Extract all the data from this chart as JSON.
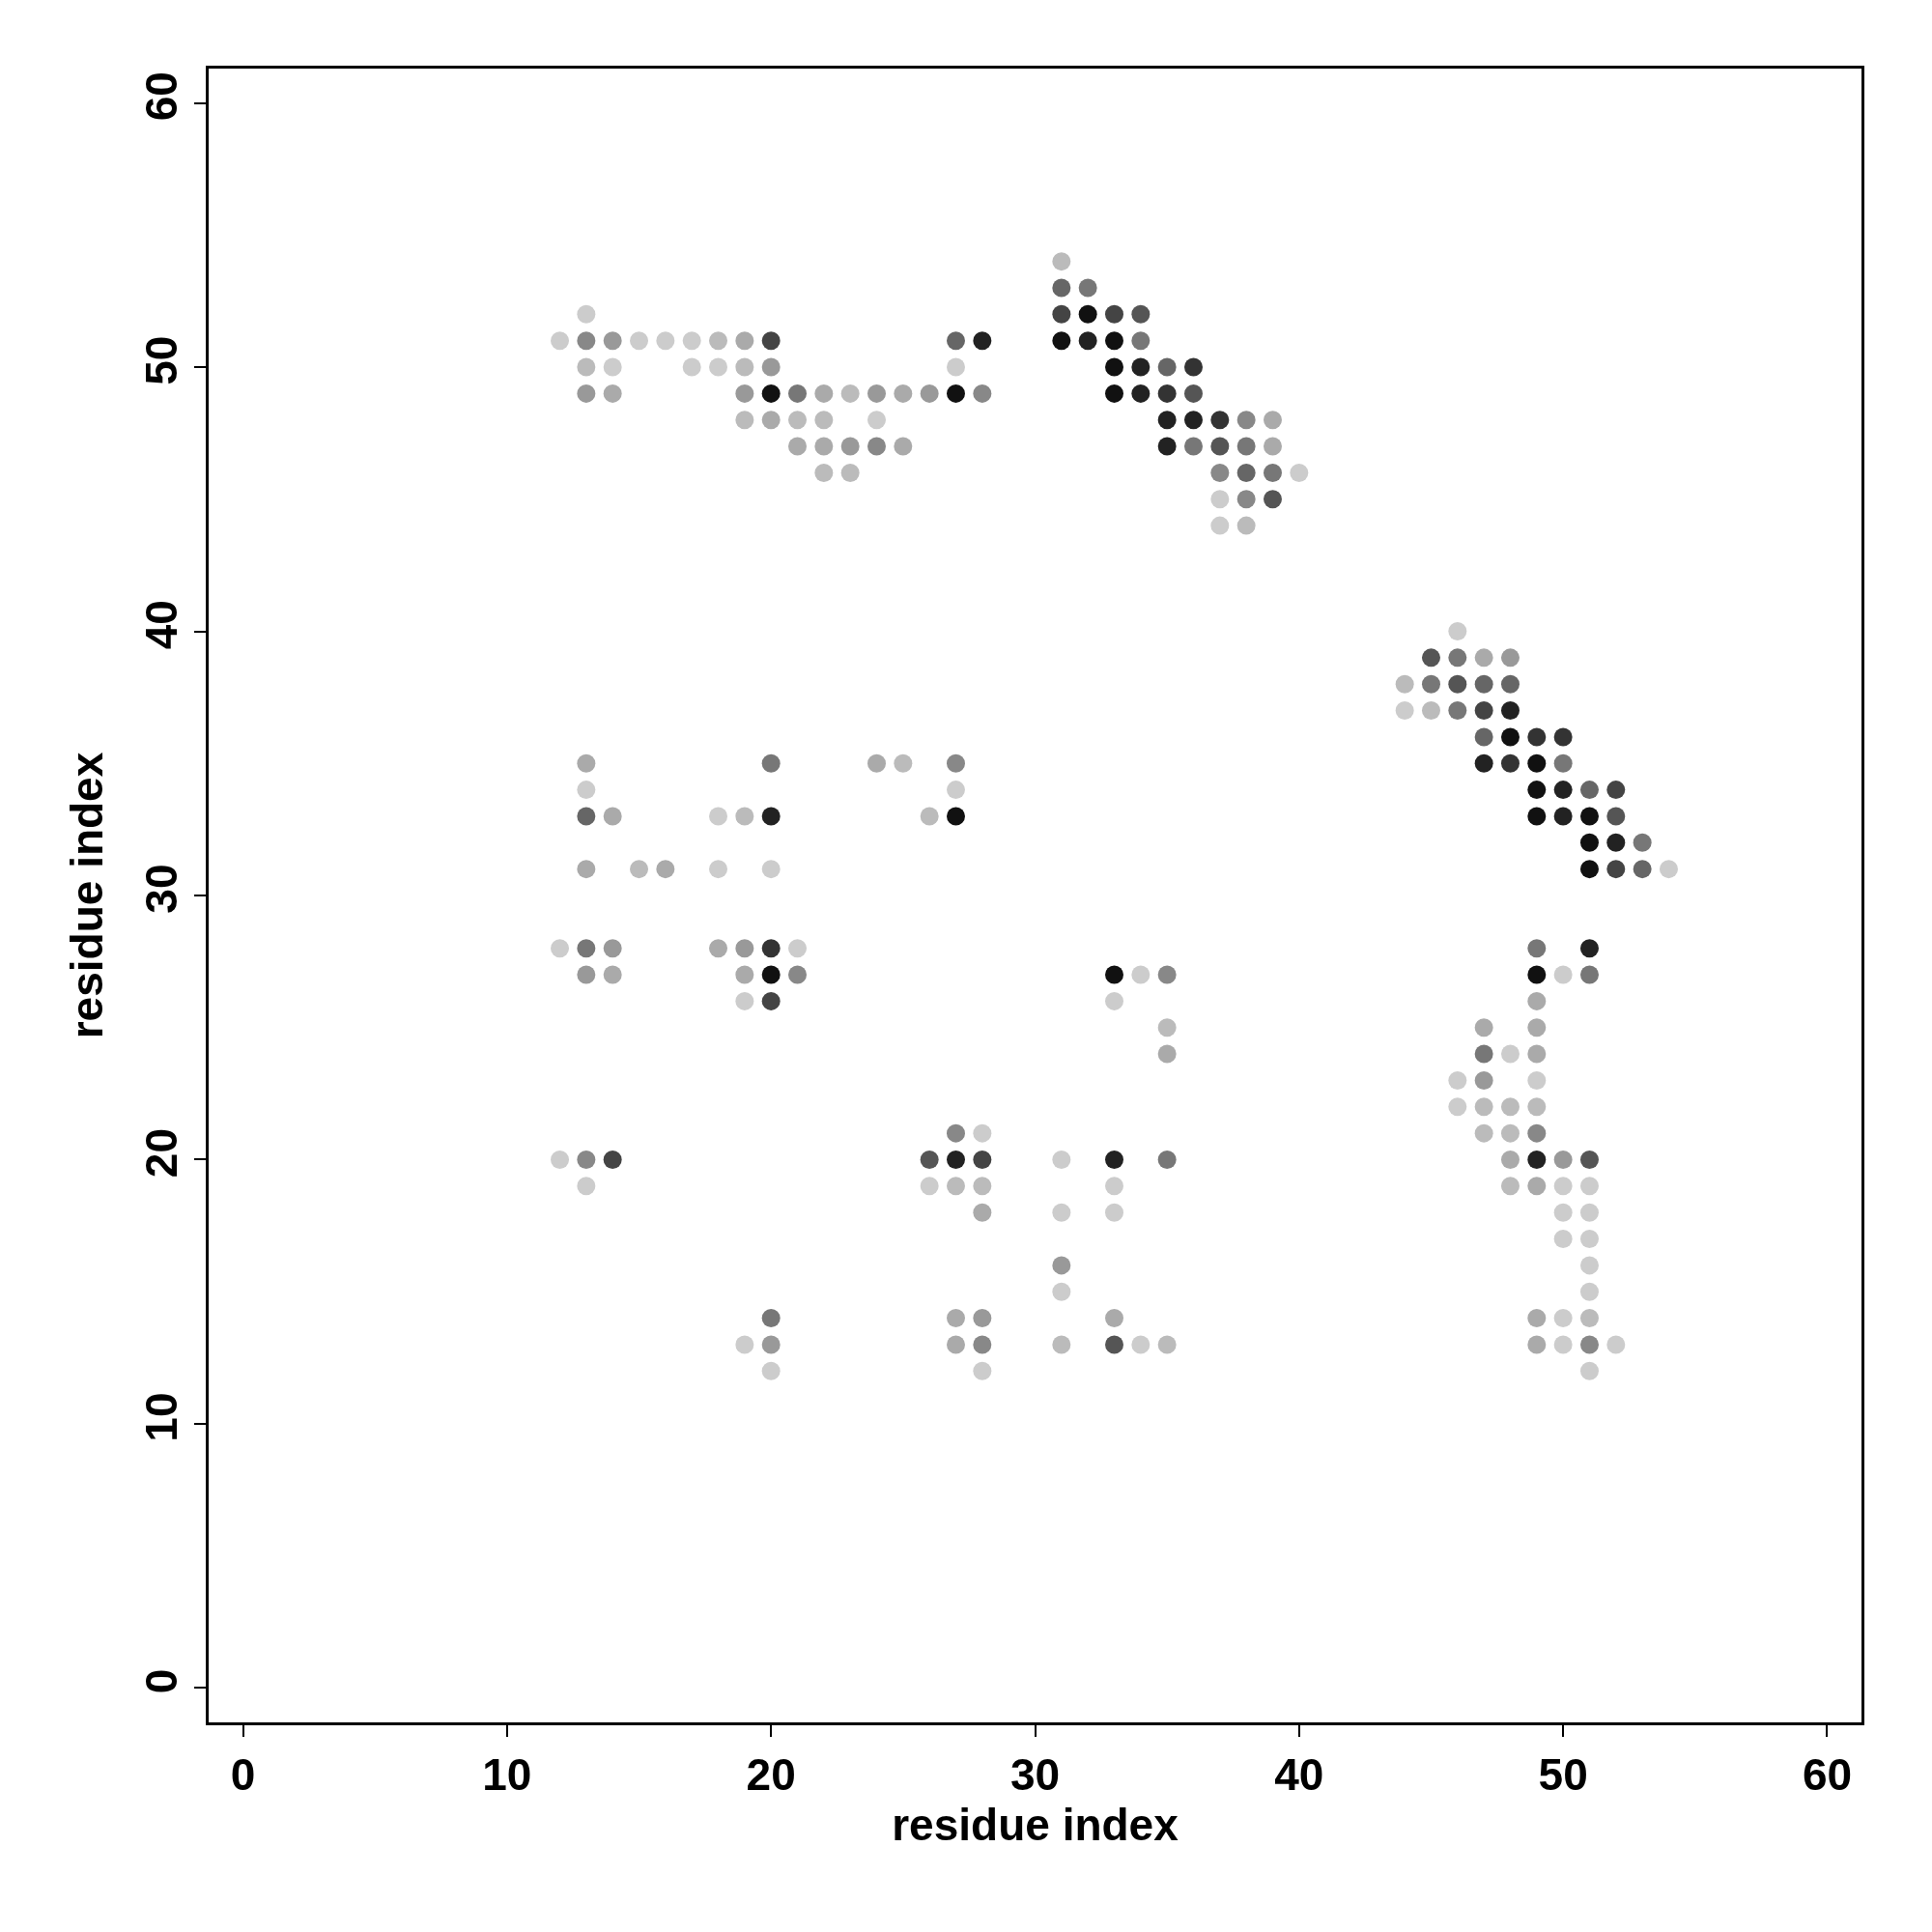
{
  "chart_data": {
    "type": "scatter",
    "xlabel": "residue index",
    "ylabel": "residue index",
    "x": [
      31,
      31,
      32,
      13,
      31,
      32,
      33,
      34,
      12,
      13,
      14,
      15,
      16,
      17,
      18,
      19,
      20,
      27,
      28,
      31,
      32,
      33,
      34,
      13,
      14,
      17,
      18,
      19,
      20,
      27,
      33,
      34,
      35,
      36,
      13,
      14,
      19,
      20,
      21,
      22,
      23,
      24,
      25,
      26,
      27,
      28,
      33,
      34,
      35,
      36,
      19,
      20,
      21,
      22,
      24,
      35,
      36,
      37,
      38,
      39,
      21,
      22,
      23,
      24,
      25,
      35,
      36,
      37,
      38,
      39,
      22,
      23,
      37,
      38,
      39,
      40,
      37,
      38,
      39,
      37,
      38,
      46,
      45,
      46,
      47,
      48,
      44,
      45,
      46,
      47,
      48,
      44,
      45,
      46,
      47,
      48,
      47,
      48,
      49,
      50,
      13,
      20,
      24,
      25,
      27,
      47,
      48,
      49,
      50,
      13,
      27,
      49,
      50,
      51,
      52,
      13,
      14,
      18,
      19,
      20,
      26,
      27,
      49,
      50,
      51,
      52,
      51,
      52,
      53,
      13,
      15,
      16,
      18,
      20,
      51,
      52,
      53,
      54,
      12,
      13,
      14,
      18,
      19,
      20,
      21,
      49,
      51,
      13,
      14,
      19,
      20,
      21,
      33,
      34,
      35,
      49,
      50,
      51,
      19,
      20,
      33,
      49,
      35,
      47,
      49,
      35,
      47,
      48,
      49,
      46,
      47,
      49,
      46,
      47,
      48,
      49,
      27,
      28,
      47,
      48,
      49,
      12,
      13,
      14,
      26,
      27,
      28,
      31,
      33,
      35,
      48,
      49,
      50,
      51,
      13,
      26,
      27,
      28,
      33,
      48,
      49,
      50,
      51,
      28,
      31,
      33,
      50,
      51,
      50,
      51,
      31,
      51,
      31,
      51,
      20,
      27,
      28,
      33,
      49,
      50,
      51,
      19,
      20,
      27,
      28,
      31,
      33,
      34,
      35,
      49,
      50,
      51,
      52,
      20,
      28,
      51
    ],
    "values": [
      54,
      53,
      53,
      52,
      52,
      52,
      52,
      52,
      51,
      51,
      51,
      51,
      51,
      51,
      51,
      51,
      51,
      51,
      51,
      51,
      51,
      51,
      51,
      50,
      50,
      50,
      50,
      50,
      50,
      50,
      50,
      50,
      50,
      50,
      49,
      49,
      49,
      49,
      49,
      49,
      49,
      49,
      49,
      49,
      49,
      49,
      49,
      49,
      49,
      49,
      48,
      48,
      48,
      48,
      48,
      48,
      48,
      48,
      48,
      48,
      47,
      47,
      47,
      47,
      47,
      47,
      47,
      47,
      47,
      47,
      46,
      46,
      46,
      46,
      46,
      46,
      45,
      45,
      45,
      44,
      44,
      40,
      39,
      39,
      39,
      39,
      38,
      38,
      38,
      38,
      38,
      37,
      37,
      37,
      37,
      37,
      36,
      36,
      36,
      36,
      35,
      35,
      35,
      35,
      35,
      35,
      35,
      35,
      35,
      34,
      34,
      34,
      34,
      34,
      34,
      33,
      33,
      33,
      33,
      33,
      33,
      33,
      33,
      33,
      33,
      33,
      32,
      32,
      32,
      31,
      31,
      31,
      31,
      31,
      31,
      31,
      31,
      31,
      28,
      28,
      28,
      28,
      28,
      28,
      28,
      28,
      28,
      27,
      27,
      27,
      27,
      27,
      27,
      27,
      27,
      27,
      27,
      27,
      26,
      26,
      26,
      26,
      25,
      25,
      25,
      24,
      24,
      24,
      24,
      23,
      23,
      23,
      22,
      22,
      22,
      22,
      21,
      21,
      21,
      21,
      21,
      20,
      20,
      20,
      20,
      20,
      20,
      20,
      20,
      20,
      20,
      20,
      20,
      20,
      19,
      19,
      19,
      19,
      19,
      19,
      19,
      19,
      19,
      18,
      18,
      18,
      18,
      18,
      17,
      17,
      16,
      16,
      15,
      15,
      14,
      14,
      14,
      14,
      14,
      14,
      14,
      13,
      13,
      13,
      13,
      13,
      13,
      13,
      13,
      13,
      13,
      13,
      13,
      12,
      12,
      12
    ],
    "colors": [
      "#bbbbbb",
      "#666666",
      "#777777",
      "#cccccc",
      "#444444",
      "#111111",
      "#444444",
      "#555555",
      "#cccccc",
      "#888888",
      "#999999",
      "#cccccc",
      "#cccccc",
      "#cccccc",
      "#bbbbbb",
      "#aaaaaa",
      "#444444",
      "#666666",
      "#222222",
      "#111111",
      "#222222",
      "#111111",
      "#777777",
      "#bbbbbb",
      "#cccccc",
      "#cccccc",
      "#cccccc",
      "#bbbbbb",
      "#999999",
      "#cccccc",
      "#111111",
      "#222222",
      "#666666",
      "#333333",
      "#999999",
      "#aaaaaa",
      "#999999",
      "#111111",
      "#777777",
      "#aaaaaa",
      "#bbbbbb",
      "#999999",
      "#aaaaaa",
      "#999999",
      "#111111",
      "#888888",
      "#111111",
      "#222222",
      "#333333",
      "#555555",
      "#bbbbbb",
      "#aaaaaa",
      "#bbbbbb",
      "#bbbbbb",
      "#cccccc",
      "#222222",
      "#222222",
      "#333333",
      "#888888",
      "#aaaaaa",
      "#aaaaaa",
      "#aaaaaa",
      "#999999",
      "#888888",
      "#aaaaaa",
      "#222222",
      "#777777",
      "#555555",
      "#777777",
      "#aaaaaa",
      "#bbbbbb",
      "#bbbbbb",
      "#888888",
      "#666666",
      "#777777",
      "#cccccc",
      "#cccccc",
      "#888888",
      "#555555",
      "#cccccc",
      "#bbbbbb",
      "#cccccc",
      "#555555",
      "#777777",
      "#aaaaaa",
      "#999999",
      "#bbbbbb",
      "#777777",
      "#555555",
      "#666666",
      "#666666",
      "#cccccc",
      "#bbbbbb",
      "#777777",
      "#444444",
      "#222222",
      "#666666",
      "#111111",
      "#333333",
      "#333333",
      "#aaaaaa",
      "#777777",
      "#aaaaaa",
      "#bbbbbb",
      "#888888",
      "#222222",
      "#333333",
      "#111111",
      "#777777",
      "#cccccc",
      "#cccccc",
      "#111111",
      "#222222",
      "#666666",
      "#444444",
      "#666666",
      "#aaaaaa",
      "#cccccc",
      "#bbbbbb",
      "#222222",
      "#bbbbbb",
      "#111111",
      "#111111",
      "#222222",
      "#111111",
      "#555555",
      "#111111",
      "#222222",
      "#777777",
      "#aaaaaa",
      "#bbbbbb",
      "#aaaaaa",
      "#cccccc",
      "#cccccc",
      "#111111",
      "#444444",
      "#666666",
      "#cccccc",
      "#cccccc",
      "#777777",
      "#999999",
      "#aaaaaa",
      "#999999",
      "#333333",
      "#cccccc",
      "#777777",
      "#222222",
      "#999999",
      "#aaaaaa",
      "#aaaaaa",
      "#111111",
      "#888888",
      "#111111",
      "#cccccc",
      "#888888",
      "#111111",
      "#cccccc",
      "#777777",
      "#cccccc",
      "#444444",
      "#cccccc",
      "#aaaaaa",
      "#bbbbbb",
      "#aaaaaa",
      "#aaaaaa",
      "#aaaaaa",
      "#777777",
      "#cccccc",
      "#aaaaaa",
      "#cccccc",
      "#999999",
      "#cccccc",
      "#cccccc",
      "#bbbbbb",
      "#bbbbbb",
      "#bbbbbb",
      "#888888",
      "#cccccc",
      "#bbbbbb",
      "#bbbbbb",
      "#888888",
      "#cccccc",
      "#888888",
      "#444444",
      "#555555",
      "#222222",
      "#444444",
      "#cccccc",
      "#222222",
      "#777777",
      "#aaaaaa",
      "#222222",
      "#999999",
      "#555555",
      "#cccccc",
      "#cccccc",
      "#bbbbbb",
      "#bbbbbb",
      "#cccccc",
      "#bbbbbb",
      "#aaaaaa",
      "#cccccc",
      "#cccccc",
      "#aaaaaa",
      "#cccccc",
      "#cccccc",
      "#cccccc",
      "#cccccc",
      "#cccccc",
      "#cccccc",
      "#999999",
      "#cccccc",
      "#cccccc",
      "#cccccc",
      "#777777",
      "#aaaaaa",
      "#999999",
      "#aaaaaa",
      "#aaaaaa",
      "#cccccc",
      "#bbbbbb",
      "#cccccc",
      "#999999",
      "#aaaaaa",
      "#888888",
      "#bbbbbb",
      "#555555",
      "#cccccc",
      "#bbbbbb",
      "#aaaaaa",
      "#cccccc",
      "#888888",
      "#cccccc",
      "#cccccc",
      "#cccccc",
      "#cccccc"
    ],
    "xlim": [
      -1.3,
      61.3
    ],
    "ylim": [
      -1.3,
      61.3
    ],
    "xticks": [
      0,
      10,
      20,
      30,
      40,
      50,
      60
    ],
    "yticks": [
      0,
      10,
      20,
      30,
      40,
      50,
      60
    ],
    "marker": "circle",
    "legend": false
  }
}
